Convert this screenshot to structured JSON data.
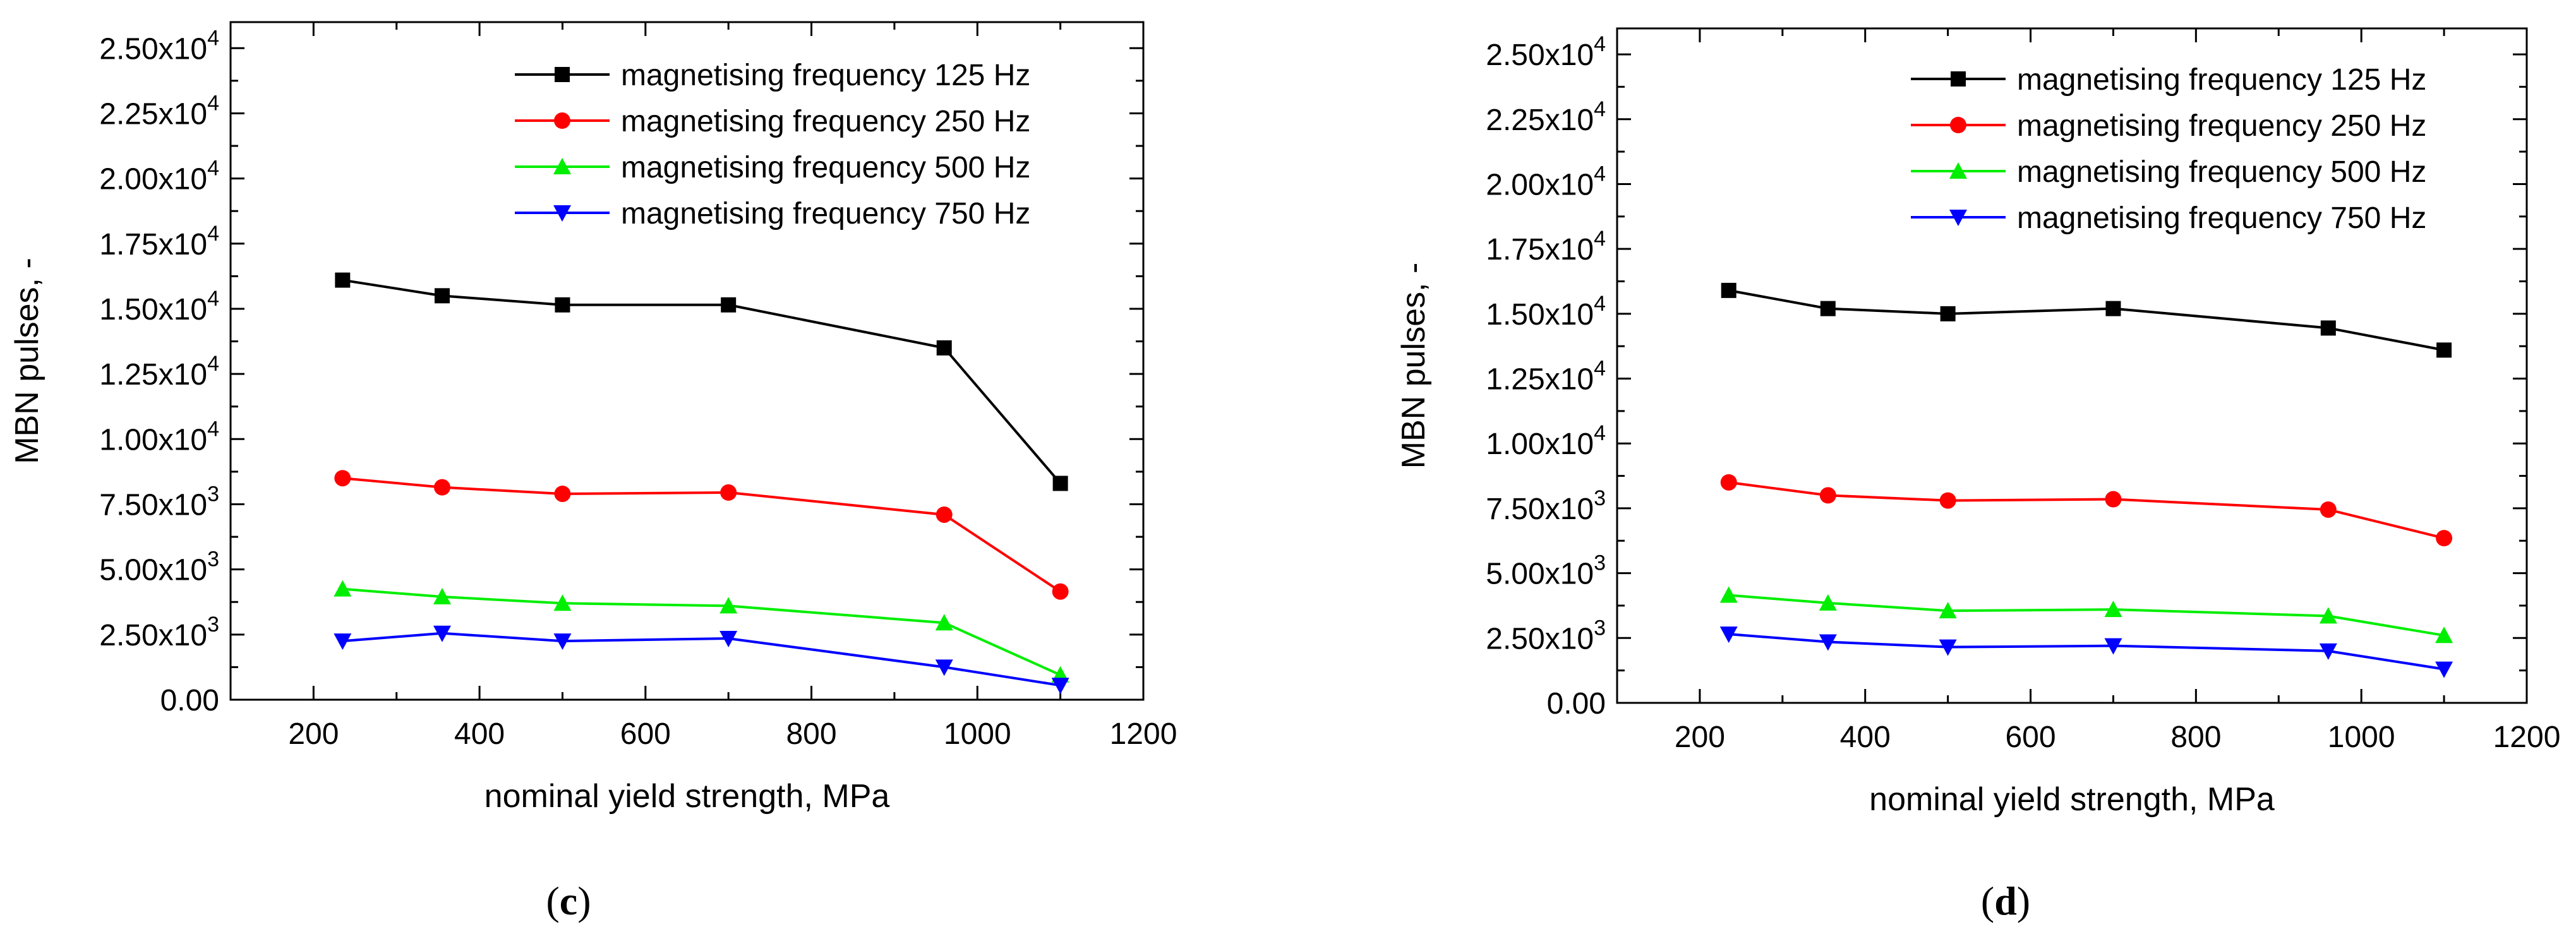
{
  "colors": {
    "black": "#000000",
    "red": "#ff0000",
    "green": "#00ee00",
    "blue": "#0000ff"
  },
  "chart_data": [
    {
      "type": "line",
      "panel_label": {
        "open": "(",
        "letter": "c",
        "close": ")"
      },
      "xlabel": "nominal yield strength, MPa",
      "ylabel": "MBN pulses, -",
      "xlim": [
        100,
        1200
      ],
      "ylim": [
        0,
        26000
      ],
      "xticks": [
        {
          "value": 200,
          "label": "200"
        },
        {
          "value": 400,
          "label": "400"
        },
        {
          "value": 600,
          "label": "600"
        },
        {
          "value": 800,
          "label": "800"
        },
        {
          "value": 1000,
          "label": "1000"
        },
        {
          "value": 1200,
          "label": "1200"
        }
      ],
      "yticks": [
        {
          "value": 0,
          "mant": "0.00",
          "exp": ""
        },
        {
          "value": 2500,
          "mant": "2.50x10",
          "exp": "3"
        },
        {
          "value": 5000,
          "mant": "5.00x10",
          "exp": "3"
        },
        {
          "value": 7500,
          "mant": "7.50x10",
          "exp": "3"
        },
        {
          "value": 10000,
          "mant": "1.00x10",
          "exp": "4"
        },
        {
          "value": 12500,
          "mant": "1.25x10",
          "exp": "4"
        },
        {
          "value": 15000,
          "mant": "1.50x10",
          "exp": "4"
        },
        {
          "value": 17500,
          "mant": "1.75x10",
          "exp": "4"
        },
        {
          "value": 20000,
          "mant": "2.00x10",
          "exp": "4"
        },
        {
          "value": 22500,
          "mant": "2.25x10",
          "exp": "4"
        },
        {
          "value": 25000,
          "mant": "2.50x10",
          "exp": "4"
        }
      ],
      "x": [
        235,
        355,
        500,
        700,
        960,
        1100
      ],
      "legend_position": "top-right",
      "series": [
        {
          "name": "magnetising frequency 125 Hz",
          "color": "#000000",
          "marker": "square",
          "values": [
            16100,
            15500,
            15150,
            15150,
            13500,
            8300
          ]
        },
        {
          "name": "magnetising frequency 250 Hz",
          "color": "#ff0000",
          "marker": "circle",
          "values": [
            8500,
            8150,
            7900,
            7950,
            7100,
            4150
          ]
        },
        {
          "name": "magnetising frequency 500 Hz",
          "color": "#00ee00",
          "marker": "triangle-up",
          "values": [
            4250,
            3950,
            3700,
            3600,
            2950,
            950
          ]
        },
        {
          "name": "magnetising frequency 750 Hz",
          "color": "#0000ff",
          "marker": "triangle-down",
          "values": [
            2250,
            2550,
            2250,
            2350,
            1250,
            550
          ]
        }
      ]
    },
    {
      "type": "line",
      "panel_label": {
        "open": "(",
        "letter": "d",
        "close": ")"
      },
      "xlabel": "nominal yield strength, MPa",
      "ylabel": "MBN pulses, -",
      "xlim": [
        100,
        1200
      ],
      "ylim": [
        0,
        26000
      ],
      "xticks": [
        {
          "value": 200,
          "label": "200"
        },
        {
          "value": 400,
          "label": "400"
        },
        {
          "value": 600,
          "label": "600"
        },
        {
          "value": 800,
          "label": "800"
        },
        {
          "value": 1000,
          "label": "1000"
        },
        {
          "value": 1200,
          "label": "1200"
        }
      ],
      "yticks": [
        {
          "value": 0,
          "mant": "0.00",
          "exp": ""
        },
        {
          "value": 2500,
          "mant": "2.50x10",
          "exp": "3"
        },
        {
          "value": 5000,
          "mant": "5.00x10",
          "exp": "3"
        },
        {
          "value": 7500,
          "mant": "7.50x10",
          "exp": "3"
        },
        {
          "value": 10000,
          "mant": "1.00x10",
          "exp": "4"
        },
        {
          "value": 12500,
          "mant": "1.25x10",
          "exp": "4"
        },
        {
          "value": 15000,
          "mant": "1.50x10",
          "exp": "4"
        },
        {
          "value": 17500,
          "mant": "1.75x10",
          "exp": "4"
        },
        {
          "value": 20000,
          "mant": "2.00x10",
          "exp": "4"
        },
        {
          "value": 22500,
          "mant": "2.25x10",
          "exp": "4"
        },
        {
          "value": 25000,
          "mant": "2.50x10",
          "exp": "4"
        }
      ],
      "x": [
        235,
        355,
        500,
        700,
        960,
        1100
      ],
      "legend_position": "top-right",
      "series": [
        {
          "name": "magnetising frequency 125 Hz",
          "color": "#000000",
          "marker": "square",
          "values": [
            15900,
            15200,
            15000,
            15200,
            14450,
            13600
          ]
        },
        {
          "name": "magnetising frequency 250 Hz",
          "color": "#ff0000",
          "marker": "circle",
          "values": [
            8500,
            8000,
            7800,
            7850,
            7450,
            6350
          ]
        },
        {
          "name": "magnetising frequency 500 Hz",
          "color": "#00ee00",
          "marker": "triangle-up",
          "values": [
            4150,
            3850,
            3550,
            3600,
            3350,
            2600
          ]
        },
        {
          "name": "magnetising frequency 750 Hz",
          "color": "#0000ff",
          "marker": "triangle-down",
          "values": [
            2650,
            2350,
            2150,
            2200,
            2000,
            1300
          ]
        }
      ]
    }
  ]
}
